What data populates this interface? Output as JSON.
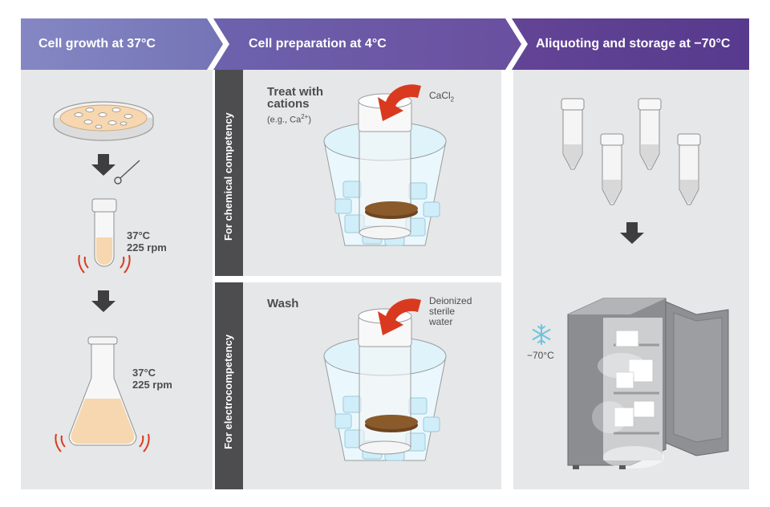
{
  "stages": {
    "growth": {
      "title": "Cell growth at 37°C"
    },
    "prep": {
      "title": "Cell preparation at 4°C"
    },
    "storage": {
      "title": "Aliquoting and storage at −70°C"
    }
  },
  "growth": {
    "tube_temp": "37°C",
    "tube_speed": "225 rpm",
    "flask_temp": "37°C",
    "flask_speed": "225 rpm"
  },
  "chemical": {
    "side_label": "For chemical competency",
    "title_line1": "Treat with",
    "title_line2": "cations",
    "example_prefix": "(e.g., Ca",
    "example_sup": "2+",
    "example_suffix": ")",
    "reagent_base": "CaCl",
    "reagent_sub": "2"
  },
  "electro": {
    "side_label": "For electrocompetency",
    "title": "Wash",
    "reagent_line1": "Deionized",
    "reagent_line2": "sterile",
    "reagent_line3": "water"
  },
  "storage": {
    "temp": "−70°C"
  },
  "colors": {
    "header_left": "#7e7fbd",
    "header_mid": "#6e5aa8",
    "header_right": "#5a3f92",
    "panel_bg": "#e6e7e8",
    "side_bar": "#4d4d4f",
    "arrow_red": "#d93a1f",
    "culture": "#f6d7b0",
    "pellet": "#8a5a2b",
    "ice": "#cfeefa"
  }
}
